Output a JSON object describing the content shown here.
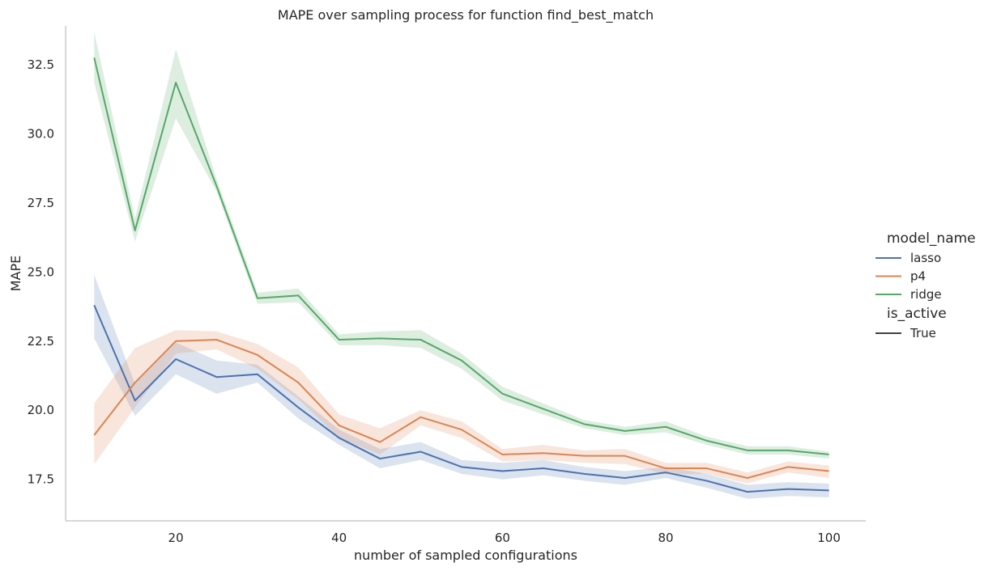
{
  "chart_data": {
    "type": "line",
    "title": "MAPE over sampling process for function find_best_match",
    "xlabel": "number of sampled configurations",
    "ylabel": "MAPE",
    "xlim": [
      6.5,
      104.5
    ],
    "ylim": [
      16.0,
      33.9
    ],
    "x_ticks": [
      20,
      40,
      60,
      80,
      100
    ],
    "y_ticks": [
      17.5,
      20.0,
      22.5,
      25.0,
      27.5,
      30.0,
      32.5
    ],
    "y_tick_labels": [
      "17.5",
      "20.0",
      "22.5",
      "25.0",
      "27.5",
      "30.0",
      "32.5"
    ],
    "x": [
      10,
      15,
      20,
      25,
      30,
      35,
      40,
      45,
      50,
      55,
      60,
      65,
      70,
      75,
      80,
      85,
      90,
      95,
      100
    ],
    "grid": false,
    "legend_placement": "right",
    "legend": {
      "hue_title": "model_name",
      "style_title": "is_active",
      "style_entries": [
        "True"
      ]
    },
    "series": [
      {
        "name": "lasso",
        "color": "#4c72b0",
        "values": [
          23.8,
          20.35,
          21.85,
          21.2,
          21.3,
          20.1,
          19.0,
          18.25,
          18.5,
          17.95,
          17.8,
          17.9,
          17.7,
          17.55,
          17.75,
          17.45,
          17.05,
          17.15,
          17.1
        ],
        "ci_low": [
          22.6,
          19.8,
          21.3,
          20.6,
          21.0,
          19.7,
          18.75,
          17.9,
          18.2,
          17.7,
          17.5,
          17.65,
          17.45,
          17.3,
          17.55,
          17.2,
          16.8,
          16.9,
          16.85
        ],
        "ci_high": [
          24.9,
          20.95,
          22.45,
          21.8,
          21.65,
          20.5,
          19.3,
          18.6,
          18.85,
          18.2,
          18.1,
          18.2,
          17.95,
          17.8,
          17.95,
          17.7,
          17.3,
          17.4,
          17.35
        ]
      },
      {
        "name": "p4",
        "color": "#dd8452",
        "values": [
          19.1,
          21.0,
          22.5,
          22.55,
          22.0,
          21.0,
          19.45,
          18.85,
          19.75,
          19.3,
          18.4,
          18.45,
          18.35,
          18.35,
          17.9,
          17.9,
          17.55,
          17.95,
          17.8
        ],
        "ci_low": [
          18.05,
          20.1,
          22.05,
          22.2,
          21.5,
          20.4,
          19.0,
          18.4,
          19.45,
          19.0,
          18.15,
          18.2,
          18.1,
          18.05,
          17.7,
          17.7,
          17.35,
          17.75,
          17.55
        ],
        "ci_high": [
          20.25,
          22.25,
          22.9,
          22.85,
          22.4,
          21.55,
          19.85,
          19.35,
          20.0,
          19.6,
          18.6,
          18.75,
          18.55,
          18.6,
          18.1,
          18.1,
          17.75,
          18.15,
          18.0
        ]
      },
      {
        "name": "ridge",
        "color": "#55a868",
        "values": [
          32.75,
          26.5,
          31.85,
          28.1,
          24.05,
          24.15,
          22.55,
          22.6,
          22.55,
          21.8,
          20.6,
          20.05,
          19.5,
          19.25,
          19.4,
          18.9,
          18.55,
          18.55,
          18.4
        ],
        "ci_low": [
          31.85,
          26.1,
          30.55,
          27.9,
          23.85,
          23.9,
          22.35,
          22.35,
          22.25,
          21.5,
          20.35,
          19.85,
          19.35,
          19.1,
          19.2,
          18.75,
          18.4,
          18.4,
          18.25
        ],
        "ci_high": [
          33.7,
          26.95,
          33.05,
          28.35,
          24.25,
          24.4,
          22.75,
          22.85,
          22.9,
          22.05,
          20.85,
          20.25,
          19.65,
          19.4,
          19.6,
          19.05,
          18.7,
          18.7,
          18.5
        ]
      }
    ]
  }
}
